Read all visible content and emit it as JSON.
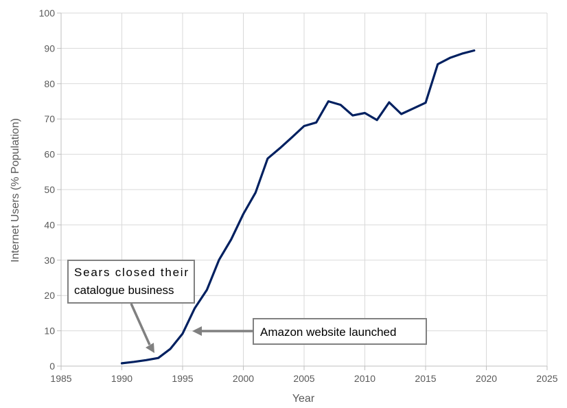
{
  "chart_data": {
    "type": "line",
    "title": "",
    "xlabel": "Year",
    "ylabel": "Internet Users (% Population)",
    "xlim": [
      1985,
      2025
    ],
    "ylim": [
      0,
      100
    ],
    "xticks": [
      1985,
      1990,
      1995,
      2000,
      2005,
      2010,
      2015,
      2020,
      2025
    ],
    "yticks": [
      0,
      10,
      20,
      30,
      40,
      50,
      60,
      70,
      80,
      90,
      100
    ],
    "grid": true,
    "legend": "none",
    "series_color": "#002060",
    "series": [
      {
        "x": [
          1990,
          1991,
          1992,
          1993,
          1994,
          1995,
          1996,
          1997,
          1998,
          1999,
          2000,
          2001,
          2002,
          2003,
          2004,
          2005,
          2006,
          2007,
          2008,
          2009,
          2010,
          2011,
          2012,
          2013,
          2014,
          2015,
          2016,
          2017,
          2018,
          2019
        ],
        "values": [
          0.8,
          1.2,
          1.7,
          2.3,
          4.9,
          9.2,
          16.4,
          21.6,
          30.1,
          35.9,
          43.1,
          49.1,
          58.8,
          61.7,
          64.8,
          68.0,
          69.0,
          75.0,
          74.0,
          71.0,
          71.7,
          69.7,
          74.7,
          71.4,
          73.0,
          74.6,
          85.5,
          87.3,
          88.5,
          89.4
        ]
      }
    ],
    "annotations": [
      {
        "text": [
          "Sears closed their",
          "catalogue business"
        ],
        "x": 1993,
        "y": 2.3
      },
      {
        "text": [
          "Amazon website launched"
        ],
        "x": 1996,
        "y": 10
      }
    ]
  }
}
